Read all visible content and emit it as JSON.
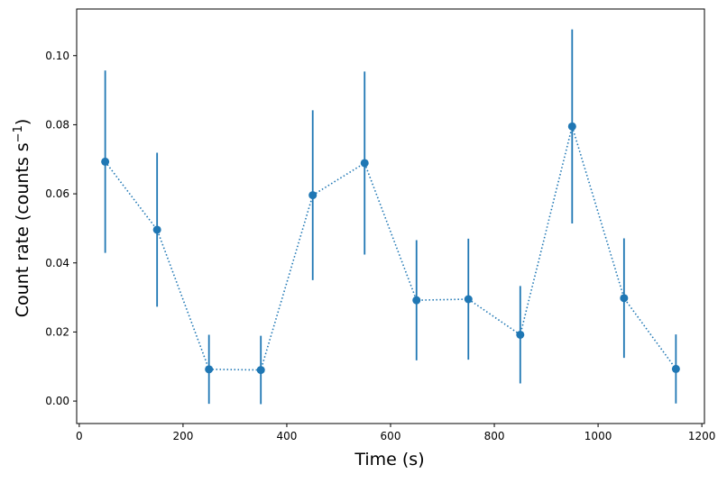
{
  "chart_data": {
    "type": "scatter",
    "title": "",
    "xlabel": "Time (s)",
    "ylabel_main": "Count rate (counts s",
    "ylabel_sup": "−1",
    "ylabel_close": ")",
    "xlim": [
      -5,
      1205
    ],
    "ylim": [
      -0.0065,
      0.1135
    ],
    "xticks": [
      {
        "value": 0,
        "label": "0"
      },
      {
        "value": 200,
        "label": "200"
      },
      {
        "value": 400,
        "label": "400"
      },
      {
        "value": 600,
        "label": "600"
      },
      {
        "value": 800,
        "label": "800"
      },
      {
        "value": 1000,
        "label": "1000"
      },
      {
        "value": 1200,
        "label": "1200"
      }
    ],
    "yticks": [
      {
        "value": 0.0,
        "label": "0.00"
      },
      {
        "value": 0.02,
        "label": "0.02"
      },
      {
        "value": 0.04,
        "label": "0.04"
      },
      {
        "value": 0.06,
        "label": "0.06"
      },
      {
        "value": 0.08,
        "label": "0.08"
      },
      {
        "value": 0.1,
        "label": "0.10"
      }
    ],
    "grid": false,
    "color": "#1f77b4",
    "line_style": "dotted",
    "series": [
      {
        "x": [
          50,
          150,
          250,
          350,
          450,
          550,
          650,
          750,
          850,
          950,
          1050,
          1150
        ],
        "y": [
          0.0693,
          0.0496,
          0.0092,
          0.009,
          0.0596,
          0.0689,
          0.0292,
          0.0295,
          0.0192,
          0.0795,
          0.0298,
          0.0093
        ],
        "yerr": [
          0.0264,
          0.0223,
          0.01,
          0.0099,
          0.0246,
          0.0265,
          0.0174,
          0.0175,
          0.0141,
          0.0281,
          0.0173,
          0.01
        ]
      }
    ]
  }
}
